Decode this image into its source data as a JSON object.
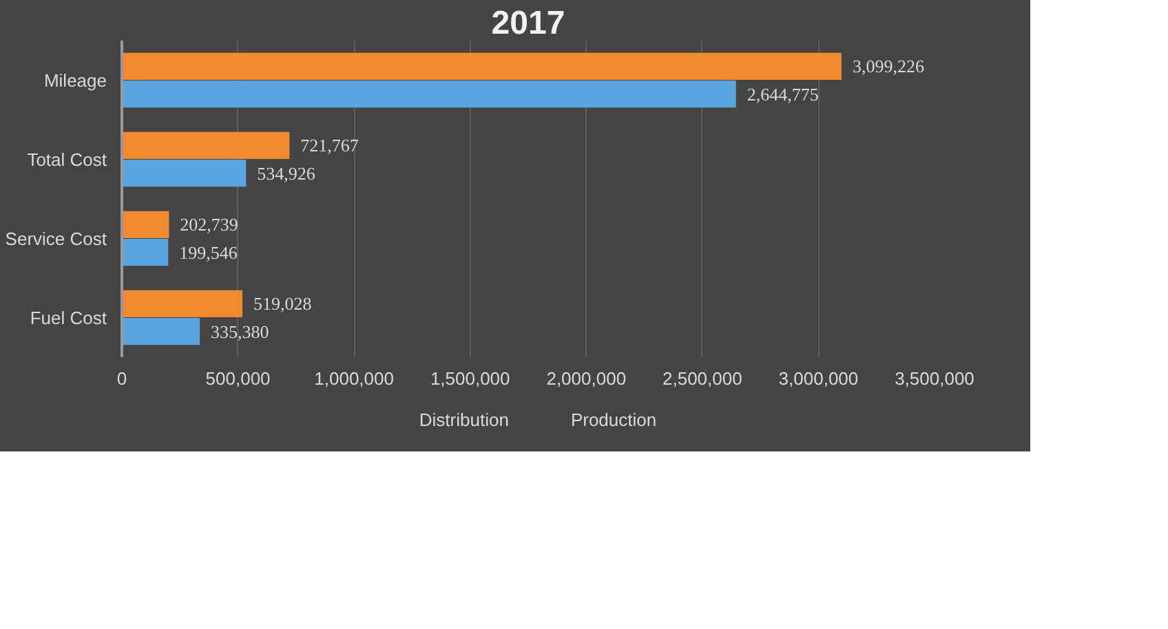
{
  "chart_data": {
    "type": "bar",
    "orientation": "horizontal",
    "title": "2017",
    "categories": [
      "Mileage",
      "Total Cost",
      "Service Cost",
      "Fuel Cost"
    ],
    "series": [
      {
        "name": "Distribution",
        "color": "#f28a30",
        "values": [
          3099226,
          721767,
          202739,
          519028
        ],
        "value_labels": [
          "3,099,226",
          "721,767",
          "202,739",
          "519,028"
        ]
      },
      {
        "name": "Production",
        "color": "#5aa5e0",
        "values": [
          2644775,
          534926,
          199546,
          335380
        ],
        "value_labels": [
          "2,644,775",
          "534,926",
          "199,546",
          "335,380"
        ]
      }
    ],
    "xlim": [
      0,
      3500000
    ],
    "xticks": [
      0,
      {
        "value": 500000,
        "label": "500,000"
      },
      {
        "value": 1000000,
        "label": "1,000,000"
      },
      {
        "value": 1500000,
        "label": "1,500,000"
      },
      {
        "value": 2000000,
        "label": "2,000,000"
      },
      {
        "value": 2500000,
        "label": "2,500,000"
      },
      {
        "value": 3000000,
        "label": "3,000,000"
      },
      {
        "value": 3500000,
        "label": "3,500,000"
      }
    ],
    "grid": "x",
    "legend": "bottom"
  }
}
